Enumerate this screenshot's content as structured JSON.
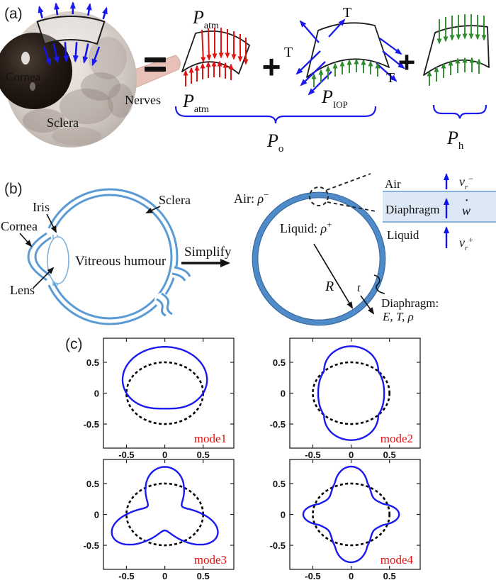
{
  "colors": {
    "arrow_blue": "#1a1aee",
    "arrow_red": "#e01414",
    "arrow_green": "#2e8b2e",
    "schematic_blue": "#5b9bd5",
    "ring_blue": "#4f8bc9",
    "inset_band_fill": "#dce8f5",
    "inset_band_edge": "#8ab1d8",
    "mode_curve": "#1a1aef",
    "mode_label": "#e81010"
  },
  "panels": {
    "a": {
      "tag": "(a)",
      "photo": {
        "cornea": "Cornea",
        "sclera": "Sclera",
        "nerves": "Nerves"
      },
      "equals": "=",
      "plus": "+",
      "tension": "T",
      "p_atm": {
        "base": "P",
        "sub": "atm"
      },
      "p_iop": {
        "base": "P",
        "sub": "IOP"
      },
      "p_o": {
        "base": "P",
        "sub": "o"
      },
      "p_h": {
        "base": "P",
        "sub": "h"
      }
    },
    "b": {
      "tag": "(b)",
      "eye": {
        "iris": "Iris",
        "cornea": "Cornea",
        "lens": "Lens",
        "vitreous": "Vitreous humour",
        "sclera": "Sclera"
      },
      "simplify": "Simplify",
      "air": {
        "text": "Air: ",
        "rho": "ρ",
        "sup": "−"
      },
      "liquid": {
        "text": "Liquid: ",
        "rho": "ρ",
        "sup": "+"
      },
      "radius": "R",
      "thickness": "t",
      "diaphragm_callout": {
        "line1": "Diaphragm:",
        "line2": "E, T, ρ"
      },
      "inset": {
        "air": "Air",
        "diaphragm": "Diaphragm",
        "liquid": "Liquid",
        "v_minus": {
          "base": "v",
          "sub": "r",
          "sup": "−"
        },
        "w_dot": {
          "base": "w",
          "dot": "˙"
        },
        "v_plus": {
          "base": "v",
          "sub": "r",
          "sup": "+"
        }
      }
    },
    "c": {
      "tag": "(c)"
    }
  },
  "chart_data": {
    "type": "line",
    "layout": "2x2 subplots",
    "xlim": [
      -0.8,
      0.9
    ],
    "ylim": [
      -0.89,
      0.89
    ],
    "xticks": [
      -0.5,
      0,
      0.5
    ],
    "yticks": [
      0.5,
      0,
      -0.5
    ],
    "grid": false,
    "reference_circle": {
      "style": "dashed",
      "color": "#000000",
      "radius": 0.5,
      "center": [
        0,
        0
      ]
    },
    "curve_color": "#1a1aef",
    "label_color": "#e81010",
    "subplots": [
      {
        "label": "mode1",
        "n": 1,
        "phase_deg": 90,
        "lobe_amp": 0.25,
        "dimple_amp": 0.25,
        "cos2_amp": 0
      },
      {
        "label": "mode2",
        "n": 2,
        "phase_deg": 90,
        "lobe_amp": 0.26,
        "dimple_amp": 0.07,
        "cos2_amp": 0
      },
      {
        "label": "mode3",
        "n": 3,
        "phase_deg": 90,
        "lobe_amp": 0.27,
        "dimple_amp": 0.24,
        "cos2_amp": 0
      },
      {
        "label": "mode4",
        "n": 4,
        "phase_deg": 90,
        "lobe_amp": 0.2,
        "dimple_amp": 0.1,
        "cos2_amp": -0.075
      }
    ]
  }
}
